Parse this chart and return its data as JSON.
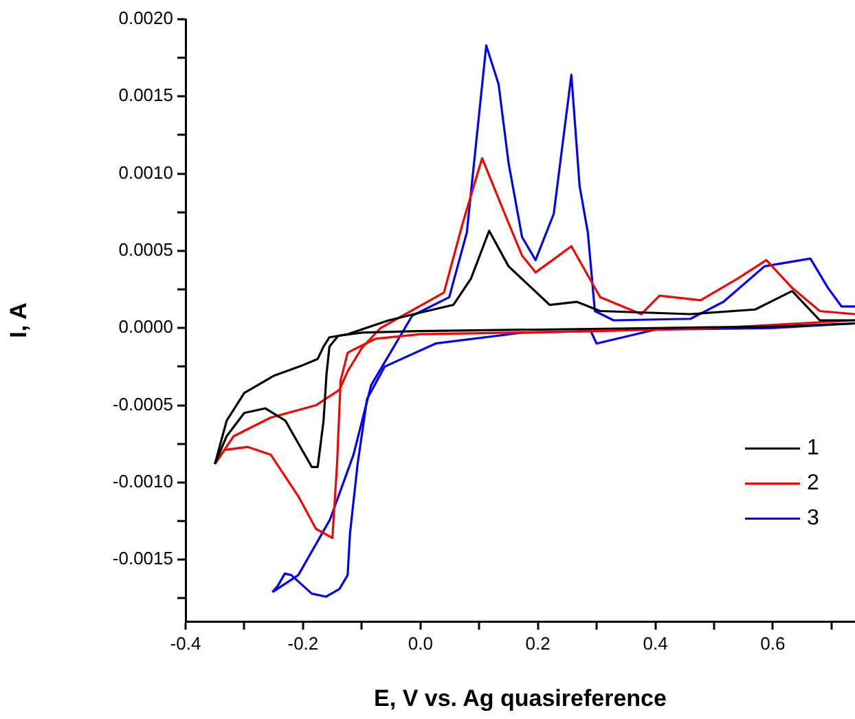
{
  "chart_data": {
    "type": "line",
    "xlabel": "E, V vs. Ag quasireference",
    "ylabel": "I, A",
    "xlim": [
      -0.4,
      0.74
    ],
    "xticks": [
      -0.4,
      {
        "value": -0.3,
        "label": null
      },
      -0.2,
      {
        "value": -0.1,
        "label": null
      },
      {
        "value": 0,
        "label": "0.0"
      },
      {
        "value": 0.1,
        "label": null
      },
      0.2,
      {
        "value": 0.3,
        "label": null
      },
      0.4,
      {
        "value": 0.5,
        "label": null
      },
      0.6,
      {
        "value": 0.7,
        "label": null
      }
    ],
    "ylim": [
      -0.0019,
      0.002
    ],
    "yticks": [
      {
        "value": -0.00175,
        "label": null
      },
      {
        "value": -0.0015,
        "label": "-0.0015"
      },
      {
        "value": -0.00125,
        "label": null
      },
      {
        "value": -0.001,
        "label": "-0.0010"
      },
      {
        "value": -0.00075,
        "label": null
      },
      {
        "value": -0.0005,
        "label": "-0.0005"
      },
      {
        "value": -0.00025,
        "label": null
      },
      {
        "value": 0,
        "label": "0.0000"
      },
      {
        "value": 0.00025,
        "label": null
      },
      {
        "value": 0.0005,
        "label": "0.0005"
      },
      {
        "value": 0.00075,
        "label": null
      },
      {
        "value": 0.001,
        "label": "0.0010"
      },
      {
        "value": 0.00125,
        "label": null
      },
      {
        "value": 0.0015,
        "label": "0.0015"
      },
      {
        "value": 0.00175,
        "label": null
      },
      {
        "value": 0.002,
        "label": "0.0020"
      }
    ],
    "grid": false,
    "legend": "bottom right",
    "marker": "none",
    "line_style": "solid",
    "series": [
      {
        "name": "1",
        "color": "#000000",
        "x": [
          -0.35,
          -0.33,
          -0.3,
          -0.25,
          -0.2,
          -0.175,
          -0.165,
          -0.155,
          -0.124,
          -0.054,
          0.0,
          0.056,
          0.086,
          0.117,
          0.15,
          0.22,
          0.266,
          0.306,
          0.46,
          0.57,
          0.633,
          0.68,
          0.74
        ],
        "values": [
          -0.00088,
          -0.0006,
          -0.00042,
          -0.00031,
          -0.00024,
          -0.0002,
          -0.00012,
          -6e-05,
          -4e-05,
          5e-05,
          0.0001,
          0.00015,
          0.00032,
          0.00063,
          0.0004,
          0.00015,
          0.00017,
          0.00011,
          9e-05,
          0.00012,
          0.00024,
          5e-05,
          5e-05
        ]
      },
      {
        "color": "#000000",
        "x": [
          -0.35,
          -0.33,
          -0.3,
          -0.264,
          -0.23,
          -0.2,
          -0.185,
          -0.175,
          -0.165,
          -0.16,
          -0.155,
          -0.14,
          -0.1,
          0.0,
          0.2,
          0.4,
          0.6,
          0.74
        ],
        "values": [
          -0.00088,
          -0.0007,
          -0.00055,
          -0.00052,
          -0.0006,
          -0.0008,
          -0.0009,
          -0.0009,
          -0.0006,
          -0.0003,
          -0.00012,
          -5e-05,
          -3e-05,
          -2e-05,
          -1e-05,
          0.0,
          1e-05,
          3e-05
        ]
      },
      {
        "name": "2",
        "color": "#ff0000",
        "x": [
          -0.35,
          -0.318,
          -0.255,
          -0.178,
          -0.138,
          -0.124,
          -0.1,
          -0.068,
          0.04,
          0.072,
          0.105,
          0.15,
          0.173,
          0.196,
          0.257,
          0.306,
          0.376,
          0.407,
          0.477,
          0.54,
          0.589,
          0.633,
          0.68,
          0.74
        ],
        "values": [
          -0.00088,
          -0.0007,
          -0.00058,
          -0.0005,
          -0.0004,
          -0.00028,
          -0.00013,
          0.0,
          0.00023,
          0.00068,
          0.0011,
          0.00068,
          0.00047,
          0.00036,
          0.00053,
          0.0002,
          9e-05,
          0.00021,
          0.00018,
          0.00032,
          0.00044,
          0.00026,
          0.00011,
          9e-05
        ]
      },
      {
        "color": "#ff0000",
        "x": [
          -0.35,
          -0.334,
          -0.294,
          -0.255,
          -0.208,
          -0.178,
          -0.15,
          -0.142,
          -0.136,
          -0.124,
          -0.114,
          -0.077,
          0.0,
          0.3,
          0.5,
          0.74
        ],
        "values": [
          -0.00088,
          -0.00079,
          -0.00077,
          -0.00082,
          -0.00109,
          -0.0013,
          -0.00136,
          -0.00088,
          -0.00034,
          -0.00016,
          -0.00014,
          -7e-05,
          -4e-05,
          -2e-05,
          0.0,
          5e-05
        ]
      },
      {
        "name": "3",
        "color": "#0000ff",
        "x": [
          -0.252,
          -0.208,
          -0.154,
          -0.114,
          -0.084,
          -0.014,
          0.049,
          0.079,
          0.112,
          0.133,
          0.15,
          0.173,
          0.196,
          0.227,
          0.257,
          0.271,
          0.285,
          0.297,
          0.329,
          0.46,
          0.516,
          0.586,
          0.664,
          0.694,
          0.717,
          0.74
        ],
        "values": [
          -0.00171,
          -0.0016,
          -0.00124,
          -0.00082,
          -0.00037,
          8e-05,
          0.0002,
          0.00062,
          0.00183,
          0.00158,
          0.00107,
          0.00059,
          0.00044,
          0.00074,
          0.00164,
          0.00092,
          0.00062,
          0.00011,
          5e-05,
          6e-05,
          0.00017,
          0.0004,
          0.00045,
          0.00026,
          0.00014,
          0.00014
        ]
      },
      {
        "color": "#0000ff",
        "x": [
          -0.252,
          -0.243,
          -0.231,
          -0.22,
          -0.185,
          -0.161,
          -0.138,
          -0.124,
          -0.12,
          -0.107,
          -0.091,
          -0.061,
          0.026,
          0.173,
          0.29,
          0.3,
          0.4,
          0.6,
          0.74
        ],
        "values": [
          -0.00171,
          -0.00167,
          -0.00159,
          -0.0016,
          -0.00172,
          -0.00174,
          -0.00169,
          -0.0016,
          -0.00133,
          -0.00088,
          -0.00046,
          -0.00025,
          -0.0001,
          -3e-05,
          -2e-05,
          -0.0001,
          -1e-05,
          0.0,
          3e-05
        ]
      }
    ]
  }
}
